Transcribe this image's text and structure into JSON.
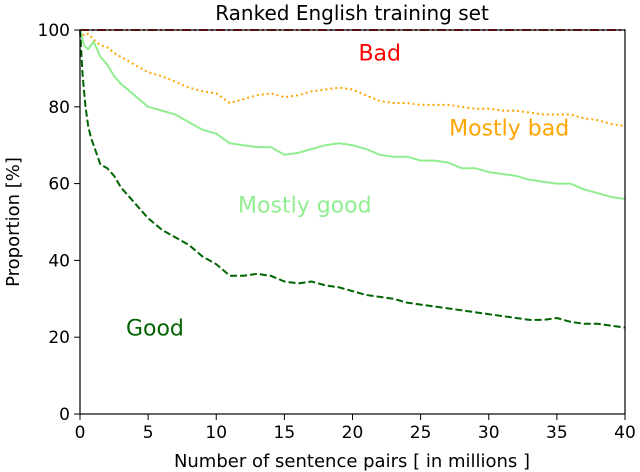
{
  "chart_data": {
    "type": "line",
    "title": "Ranked English training set",
    "xlabel": "Number of sentence pairs [ in millions ]",
    "ylabel": "Proportion [%]",
    "xlim": [
      0,
      40
    ],
    "ylim": [
      0,
      100
    ],
    "xticks": [
      0,
      5,
      10,
      15,
      20,
      25,
      30,
      35,
      40
    ],
    "yticks": [
      0,
      20,
      40,
      60,
      80,
      100
    ],
    "grid": false,
    "legend": "none",
    "series": [
      {
        "name": "Bad",
        "color": "#d62728",
        "style": "dashdot",
        "x": [
          0,
          0.5,
          1,
          2,
          5,
          10,
          15,
          20,
          25,
          30,
          35,
          40
        ],
        "y": [
          100,
          100,
          100,
          100,
          100,
          100,
          100,
          100,
          100,
          100,
          100,
          100
        ]
      },
      {
        "name": "Mostly bad",
        "color": "#ffa500",
        "style": "dotted",
        "x": [
          0,
          0.3,
          0.6,
          1,
          1.5,
          2,
          2.5,
          3,
          4,
          5,
          6,
          7,
          8,
          9,
          10,
          11,
          12,
          13,
          14,
          15,
          16,
          17,
          18,
          19,
          20,
          21,
          22,
          23,
          24,
          25,
          26,
          27,
          28,
          29,
          30,
          31,
          32,
          33,
          34,
          35,
          36,
          37,
          38,
          39,
          40
        ],
        "y": [
          100,
          98.5,
          99,
          97.5,
          96,
          95.5,
          94,
          93,
          91,
          89,
          88,
          86.5,
          85,
          84,
          83.5,
          81,
          82,
          83,
          83.5,
          82.5,
          83,
          84,
          84.5,
          85,
          84.5,
          83,
          81.5,
          81,
          81,
          80.5,
          80.5,
          80.5,
          80,
          79.5,
          79.5,
          79,
          79,
          78.5,
          78,
          78,
          78,
          77,
          76.5,
          75.5,
          75
        ]
      },
      {
        "name": "Mostly good",
        "color": "#90ee90",
        "style": "solid",
        "x": [
          0,
          0.3,
          0.6,
          1,
          1.5,
          2,
          2.5,
          3,
          4,
          5,
          6,
          7,
          8,
          9,
          10,
          11,
          12,
          13,
          14,
          15,
          16,
          17,
          18,
          19,
          20,
          21,
          22,
          23,
          24,
          25,
          26,
          27,
          28,
          29,
          30,
          31,
          32,
          33,
          34,
          35,
          36,
          37,
          38,
          39,
          40
        ],
        "y": [
          100,
          96,
          95,
          97,
          93,
          91,
          88,
          86,
          83,
          80,
          79,
          78,
          76,
          74,
          73,
          70.5,
          70,
          69.5,
          69.5,
          67.5,
          68,
          69,
          70,
          70.5,
          70,
          69,
          67.5,
          67,
          67,
          66,
          66,
          65.5,
          64,
          64,
          63,
          62.5,
          62,
          61,
          60.5,
          60,
          60,
          58.5,
          57.5,
          56.5,
          56
        ]
      },
      {
        "name": "Good",
        "color": "#006400",
        "style": "dashed",
        "x": [
          0,
          0.2,
          0.4,
          0.6,
          0.8,
          1,
          1.5,
          2,
          2.5,
          3,
          4,
          5,
          6,
          7,
          8,
          9,
          10,
          11,
          12,
          13,
          14,
          15,
          16,
          17,
          18,
          19,
          20,
          21,
          22,
          23,
          24,
          25,
          26,
          27,
          28,
          29,
          30,
          31,
          32,
          33,
          34,
          35,
          36,
          37,
          38,
          39,
          40
        ],
        "y": [
          100,
          88,
          80,
          75,
          72,
          70,
          65,
          64,
          62,
          59,
          55,
          51,
          48,
          46,
          44,
          41,
          39,
          36,
          36,
          36.5,
          36,
          34.5,
          34,
          34.5,
          33.5,
          33,
          32,
          31,
          30.5,
          30,
          29,
          28.5,
          28,
          27.5,
          27,
          26.5,
          26,
          25.5,
          25,
          24.5,
          24.5,
          25,
          24,
          23.5,
          23.5,
          23,
          22.5
        ]
      }
    ],
    "annotations": [
      {
        "text": "Bad",
        "color": "#ff0000",
        "x": 22,
        "y": 92
      },
      {
        "text": "Mostly bad",
        "color": "#ffa500",
        "x": 31.5,
        "y": 72.5
      },
      {
        "text": "Mostly good",
        "color": "#90ee90",
        "x": 16.5,
        "y": 52.5
      },
      {
        "text": "Good",
        "color": "#006400",
        "x": 5.5,
        "y": 20.5
      }
    ]
  }
}
